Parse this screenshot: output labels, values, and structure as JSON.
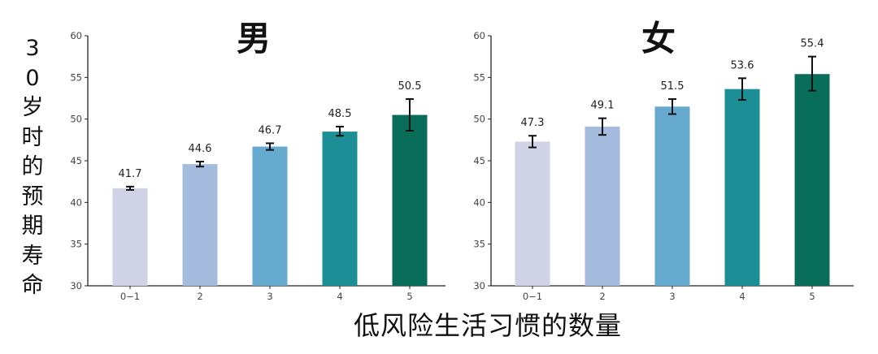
{
  "ylabel": "30岁时的预期寿命",
  "xlabel": "低风险生活习惯的数量",
  "colors": [
    "#d0d2e6",
    "#a4bbdd",
    "#67aad0",
    "#1b8f95",
    "#086e5a"
  ],
  "chart_data": [
    {
      "type": "bar",
      "title": "男",
      "categories": [
        "0−1",
        "2",
        "3",
        "4",
        "5"
      ],
      "values": [
        41.7,
        44.6,
        46.7,
        48.5,
        50.5
      ],
      "error_low": [
        41.5,
        44.3,
        46.3,
        48.0,
        48.6
      ],
      "error_high": [
        41.9,
        44.9,
        47.1,
        49.1,
        52.4
      ],
      "ylim": [
        30,
        60
      ],
      "yticks": [
        "30",
        "35",
        "40",
        "45",
        "50",
        "55",
        "60"
      ],
      "grid": false
    },
    {
      "type": "bar",
      "title": "女",
      "categories": [
        "0−1",
        "2",
        "3",
        "4",
        "5"
      ],
      "values": [
        47.3,
        49.1,
        51.5,
        53.6,
        55.4
      ],
      "error_low": [
        46.6,
        48.1,
        50.6,
        52.3,
        53.4
      ],
      "error_high": [
        48.0,
        50.1,
        52.4,
        54.9,
        57.5
      ],
      "ylim": [
        30,
        60
      ],
      "yticks": [
        "30",
        "35",
        "40",
        "45",
        "50",
        "55",
        "60"
      ],
      "grid": false
    }
  ]
}
